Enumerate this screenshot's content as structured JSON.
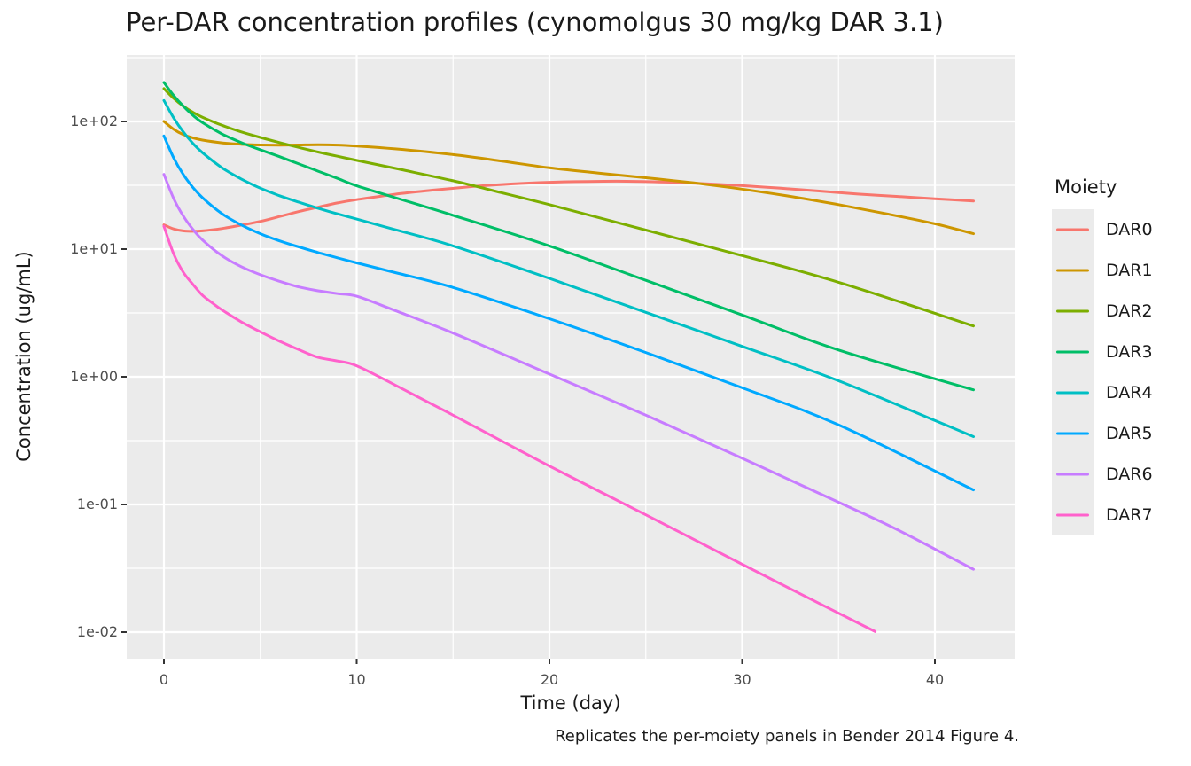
{
  "colors": {
    "background": "#FFFFFF",
    "panel": "#EBEBEB",
    "grid": "#FFFFFF",
    "tick_mark": "#333333",
    "tick_text": "#4D4D4D",
    "text": "#1A1A1A",
    "legend_key": "#EBEBEB"
  },
  "chart_data": {
    "type": "line",
    "title": "Per-DAR concentration profiles (cynomolgus 30 mg/kg DAR 3.1)",
    "xlabel": "Time (day)",
    "ylabel": "Concentration (ug/mL)",
    "caption": "Replicates the per-moiety panels in Bender 2014 Figure 4.",
    "legend_title": "Moiety",
    "legend_position": "right",
    "grid": true,
    "x_axis": {
      "range": [
        -2.1,
        44.1
      ],
      "ticks": [
        {
          "label": "0",
          "t": 0
        },
        {
          "label": "10",
          "t": 10
        },
        {
          "label": "20",
          "t": 20
        },
        {
          "label": "30",
          "t": 30
        },
        {
          "label": "40",
          "t": 40
        }
      ],
      "minor_t": [
        5,
        15,
        25,
        35
      ]
    },
    "y_axis": {
      "scale": "log10",
      "range_log": [
        -2.215,
        2.514
      ],
      "ticks": [
        {
          "label": "1e+02",
          "value": 100,
          "log": 2
        },
        {
          "label": "1e+01",
          "value": 10,
          "log": 1
        },
        {
          "label": "1e+00",
          "value": 1,
          "log": 0
        },
        {
          "label": "1e-01",
          "value": 0.1,
          "log": -1
        },
        {
          "label": "1e-02",
          "value": 0.01,
          "log": -2
        }
      ],
      "minor_log": [
        2.5,
        1.5,
        0.5,
        -0.5,
        -1.5
      ]
    },
    "series": [
      {
        "name": "DAR0",
        "color": "#F8766D",
        "points": [
          [
            0,
            15.5
          ],
          [
            0.5,
            14.4
          ],
          [
            1,
            13.9
          ],
          [
            1.5,
            13.8
          ],
          [
            2,
            13.9
          ],
          [
            3,
            14.5
          ],
          [
            4,
            15.4
          ],
          [
            5,
            16.5
          ],
          [
            6,
            18
          ],
          [
            7,
            19.7
          ],
          [
            8,
            21.3
          ],
          [
            9,
            23
          ],
          [
            10,
            24.4
          ],
          [
            12,
            26.9
          ],
          [
            14,
            29
          ],
          [
            16,
            30.9
          ],
          [
            18,
            32.4
          ],
          [
            20,
            33.4
          ],
          [
            22,
            33.9
          ],
          [
            24,
            34
          ],
          [
            26,
            33.5
          ],
          [
            28,
            32.6
          ],
          [
            30,
            31.4
          ],
          [
            32,
            30
          ],
          [
            34,
            28.5
          ],
          [
            36,
            27
          ],
          [
            38,
            25.9
          ],
          [
            40,
            24.8
          ],
          [
            42,
            23.8
          ]
        ]
      },
      {
        "name": "DAR1",
        "color": "#CD9600",
        "points": [
          [
            0,
            100
          ],
          [
            0.5,
            87
          ],
          [
            1,
            79
          ],
          [
            1.5,
            74.5
          ],
          [
            2,
            71.5
          ],
          [
            3,
            68
          ],
          [
            4,
            66.3
          ],
          [
            5,
            65.5
          ],
          [
            6,
            65.3
          ],
          [
            7,
            65.5
          ],
          [
            8,
            65.8
          ],
          [
            9,
            65.4
          ],
          [
            10,
            64.2
          ],
          [
            12,
            61
          ],
          [
            15,
            55
          ],
          [
            17.5,
            49
          ],
          [
            20,
            43.3
          ],
          [
            22.5,
            39.5
          ],
          [
            25,
            36.2
          ],
          [
            27.5,
            33
          ],
          [
            30,
            29.5
          ],
          [
            32.5,
            25.9
          ],
          [
            35,
            22.3
          ],
          [
            37.5,
            18.9
          ],
          [
            40,
            15.8
          ],
          [
            42,
            13.2
          ]
        ]
      },
      {
        "name": "DAR2",
        "color": "#7CAE00",
        "points": [
          [
            0,
            181
          ],
          [
            0.5,
            152
          ],
          [
            1,
            132
          ],
          [
            1.5,
            118
          ],
          [
            2,
            108
          ],
          [
            3,
            93.5
          ],
          [
            4,
            83
          ],
          [
            5,
            75
          ],
          [
            6,
            68.3
          ],
          [
            7,
            62.6
          ],
          [
            8,
            57.6
          ],
          [
            9,
            53.4
          ],
          [
            10,
            49.6
          ],
          [
            12,
            42.9
          ],
          [
            15,
            34.3
          ],
          [
            17.5,
            27.7
          ],
          [
            20,
            22.3
          ],
          [
            25,
            14.1
          ],
          [
            30,
            8.9
          ],
          [
            35,
            5.5
          ],
          [
            42,
            2.5
          ]
        ]
      },
      {
        "name": "DAR3",
        "color": "#00BE67",
        "points": [
          [
            0,
            202
          ],
          [
            0.5,
            160
          ],
          [
            1,
            132
          ],
          [
            1.5,
            112
          ],
          [
            2,
            98
          ],
          [
            3,
            80
          ],
          [
            4,
            68.5
          ],
          [
            5,
            60
          ],
          [
            6,
            53
          ],
          [
            7,
            46.5
          ],
          [
            8,
            40.8
          ],
          [
            9,
            35.8
          ],
          [
            10,
            31.3
          ],
          [
            12,
            25.3
          ],
          [
            15,
            18.4
          ],
          [
            20,
            10.6
          ],
          [
            25,
            5.7
          ],
          [
            30,
            3.05
          ],
          [
            35,
            1.62
          ],
          [
            42,
            0.79
          ]
        ]
      },
      {
        "name": "DAR4",
        "color": "#00BFC4",
        "points": [
          [
            0,
            146
          ],
          [
            0.5,
            107
          ],
          [
            1,
            83
          ],
          [
            1.5,
            67.5
          ],
          [
            2,
            57
          ],
          [
            3,
            43.5
          ],
          [
            4,
            35.5
          ],
          [
            5,
            30
          ],
          [
            6,
            26.2
          ],
          [
            7,
            23.3
          ],
          [
            8,
            20.9
          ],
          [
            9,
            18.9
          ],
          [
            10,
            17.2
          ],
          [
            12,
            14.2
          ],
          [
            15,
            10.6
          ],
          [
            20,
            5.9
          ],
          [
            25,
            3.2
          ],
          [
            30,
            1.73
          ],
          [
            35,
            0.93
          ],
          [
            42,
            0.34
          ]
        ]
      },
      {
        "name": "DAR5",
        "color": "#00A9FF",
        "points": [
          [
            0,
            77
          ],
          [
            0.5,
            52
          ],
          [
            1,
            38.5
          ],
          [
            1.5,
            30.5
          ],
          [
            2,
            25.3
          ],
          [
            3,
            19
          ],
          [
            4,
            15.5
          ],
          [
            5,
            13.2
          ],
          [
            6,
            11.6
          ],
          [
            7,
            10.4
          ],
          [
            8,
            9.4
          ],
          [
            9,
            8.55
          ],
          [
            10,
            7.8
          ],
          [
            12,
            6.55
          ],
          [
            15,
            5.0
          ],
          [
            20,
            2.85
          ],
          [
            25,
            1.55
          ],
          [
            30,
            0.82
          ],
          [
            35,
            0.42
          ],
          [
            42,
            0.13
          ]
        ]
      },
      {
        "name": "DAR6",
        "color": "#C77CFF",
        "points": [
          [
            0,
            38.5
          ],
          [
            0.5,
            25
          ],
          [
            1,
            18.2
          ],
          [
            1.5,
            14.3
          ],
          [
            2,
            11.8
          ],
          [
            3,
            8.9
          ],
          [
            4,
            7.3
          ],
          [
            5,
            6.3
          ],
          [
            6,
            5.6
          ],
          [
            7,
            5.05
          ],
          [
            8,
            4.72
          ],
          [
            9,
            4.48
          ],
          [
            10,
            4.28
          ],
          [
            12,
            3.3
          ],
          [
            15,
            2.2
          ],
          [
            20,
            1.05
          ],
          [
            25,
            0.5
          ],
          [
            30,
            0.23
          ],
          [
            35,
            0.104
          ],
          [
            38,
            0.064
          ],
          [
            42,
            0.031
          ]
        ]
      },
      {
        "name": "DAR7",
        "color": "#FF61CC",
        "points": [
          [
            0,
            15.1
          ],
          [
            0.5,
            9.2
          ],
          [
            1,
            6.6
          ],
          [
            1.5,
            5.3
          ],
          [
            2,
            4.35
          ],
          [
            2.5,
            3.8
          ],
          [
            3,
            3.35
          ],
          [
            4,
            2.7
          ],
          [
            5,
            2.25
          ],
          [
            6,
            1.9
          ],
          [
            7,
            1.63
          ],
          [
            8,
            1.42
          ],
          [
            9,
            1.33
          ],
          [
            10,
            1.22
          ],
          [
            12,
            0.86
          ],
          [
            15,
            0.5
          ],
          [
            20,
            0.2
          ],
          [
            25,
            0.083
          ],
          [
            30,
            0.034
          ],
          [
            33,
            0.02
          ],
          [
            36.9,
            0.0101
          ]
        ]
      }
    ]
  }
}
